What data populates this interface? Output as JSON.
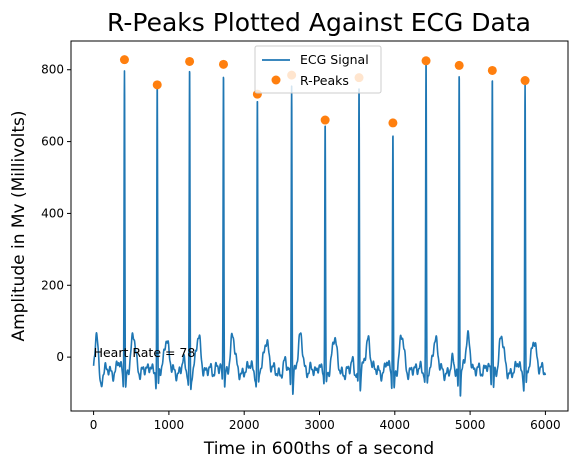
{
  "chart_data": {
    "type": "line",
    "title": "R-Peaks Plotted Against ECG Data",
    "xlabel": "Time in 600ths of a second",
    "ylabel": "Amplitude in Mv (Millivolts)",
    "xlim": [
      -300,
      6300
    ],
    "ylim": [
      -150,
      880
    ],
    "xticks": [
      0,
      1000,
      2000,
      3000,
      4000,
      5000,
      6000
    ],
    "yticks": [
      0,
      200,
      400,
      600,
      800
    ],
    "grid": false,
    "legend_placement": "upper center",
    "annotation": {
      "text": "Heart Rate = 78",
      "x": 0,
      "y": 0
    },
    "colors": {
      "ecg": "#1f77b4",
      "peaks": "#ff7f0e"
    },
    "series": [
      {
        "name": "ECG Signal",
        "type": "line",
        "beats": [
          {
            "r": 410,
            "peak": 828
          },
          {
            "r": 845,
            "peak": 758
          },
          {
            "r": 1275,
            "peak": 823
          },
          {
            "r": 1725,
            "peak": 815
          },
          {
            "r": 2175,
            "peak": 732
          },
          {
            "r": 2630,
            "peak": 785
          },
          {
            "r": 3075,
            "peak": 660
          },
          {
            "r": 3525,
            "peak": 778
          },
          {
            "r": 3975,
            "peak": 652
          },
          {
            "r": 4415,
            "peak": 825
          },
          {
            "r": 4855,
            "peak": 812
          },
          {
            "r": 5295,
            "peak": 798
          },
          {
            "r": 5730,
            "peak": 770
          }
        ],
        "x_range": [
          0,
          6000
        ],
        "baseline": -40
      },
      {
        "name": "R-Peaks",
        "type": "scatter",
        "x": [
          410,
          845,
          1275,
          1725,
          2175,
          2630,
          3075,
          3525,
          3975,
          4415,
          4855,
          5295,
          5730
        ],
        "y": [
          828,
          758,
          823,
          815,
          732,
          785,
          660,
          778,
          652,
          825,
          812,
          798,
          770
        ]
      }
    ]
  }
}
